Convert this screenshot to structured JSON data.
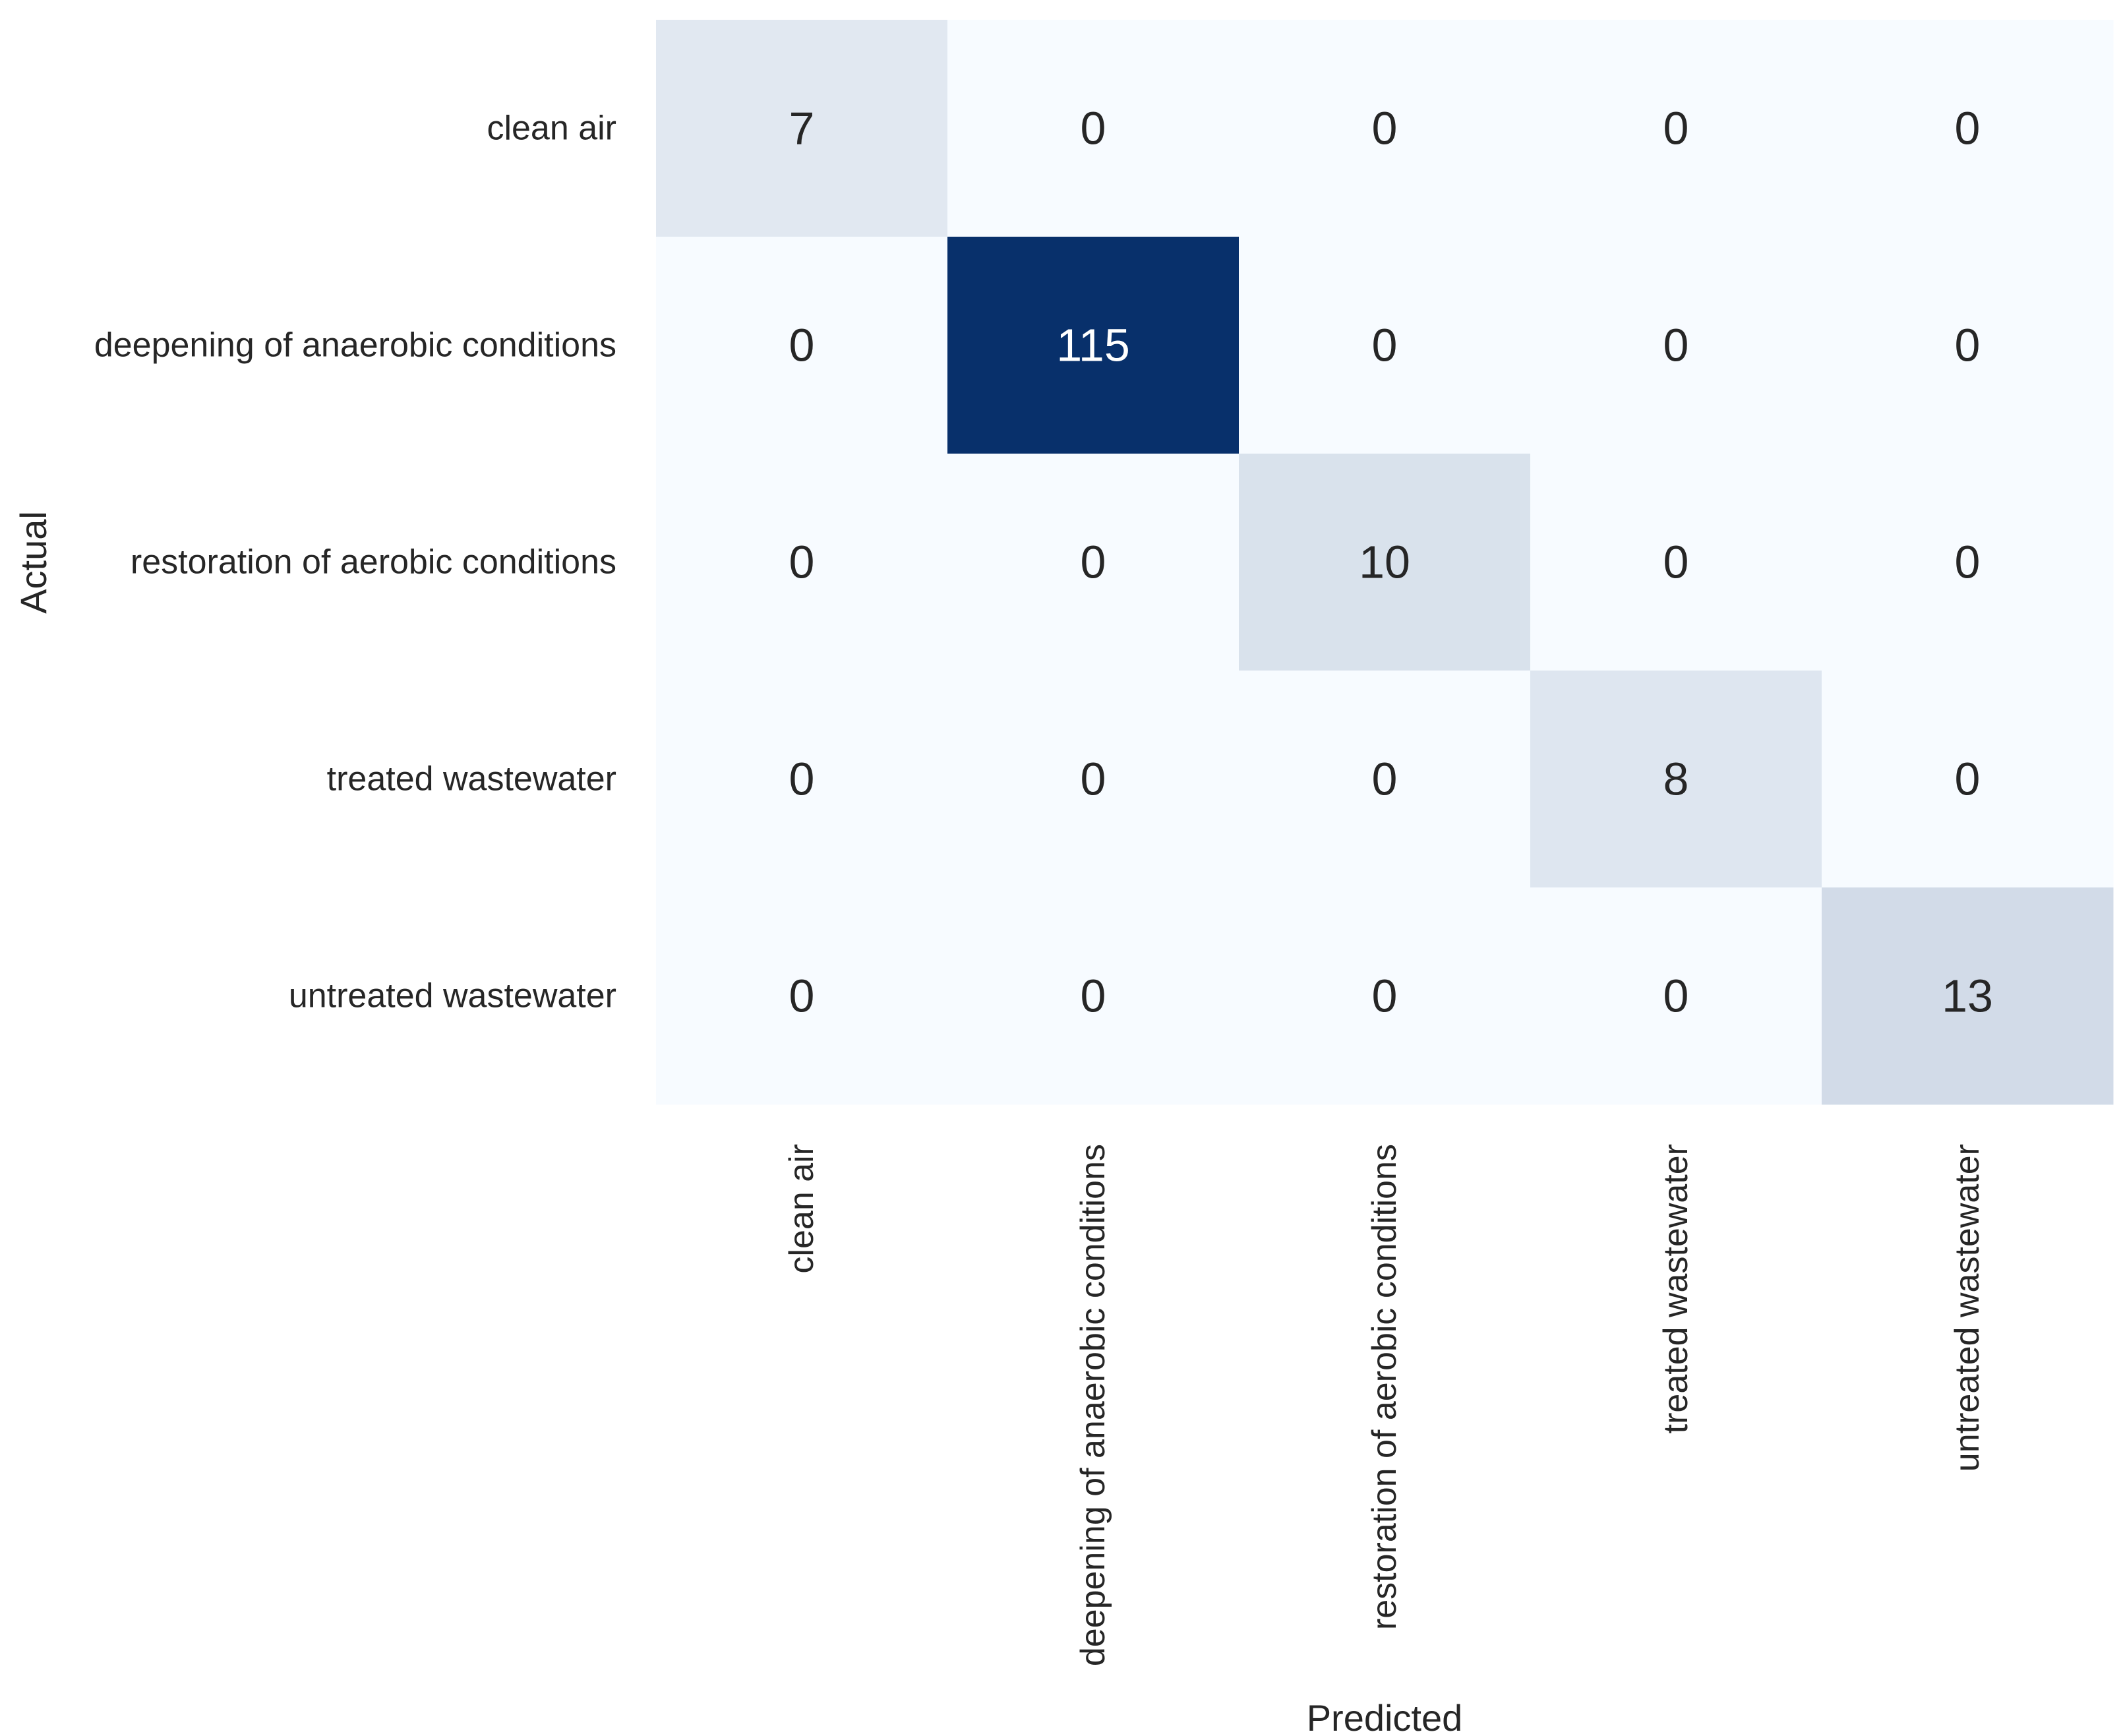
{
  "chart_data": {
    "type": "heatmap",
    "title": "",
    "xlabel": "Predicted",
    "ylabel": "Actual",
    "x_categories": [
      "clean air",
      "deepening of anaerobic conditions",
      "restoration of aerobic conditions",
      "treated wastewater",
      "untreated wastewater"
    ],
    "y_categories": [
      "clean air",
      "deepening of anaerobic conditions",
      "restoration of aerobic conditions",
      "treated wastewater",
      "untreated wastewater"
    ],
    "values": [
      [
        7,
        0,
        0,
        0,
        0
      ],
      [
        0,
        115,
        0,
        0,
        0
      ],
      [
        0,
        0,
        10,
        0,
        0
      ],
      [
        0,
        0,
        0,
        8,
        0
      ],
      [
        0,
        0,
        0,
        0,
        13
      ]
    ],
    "colormap": "Blues",
    "color_low": "#f7fbff",
    "color_high": "#08306b",
    "text_color_dark": "#262626",
    "text_color_light": "#ffffff",
    "annotated": true,
    "colorbar": false,
    "grid": false
  }
}
